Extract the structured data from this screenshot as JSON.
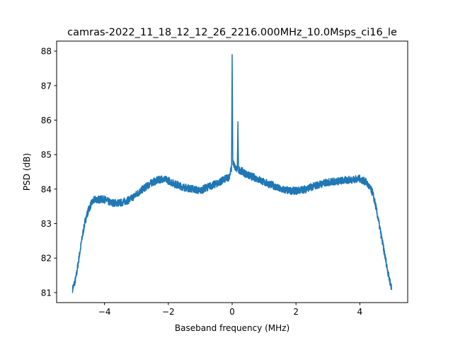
{
  "chart_data": {
    "type": "line",
    "title": "camras-2022_11_18_12_12_26_2216.000MHz_10.0Msps_ci16_le",
    "xlabel": "Baseband frequency (MHz)",
    "ylabel": "PSD (dB)",
    "xlim": [
      -5.5,
      5.5
    ],
    "ylim": [
      80.71,
      88.29
    ],
    "xticks": [
      -4,
      -2,
      0,
      2,
      4
    ],
    "xtick_labels": [
      "−4",
      "−2",
      "0",
      "2",
      "4"
    ],
    "yticks": [
      81,
      82,
      83,
      84,
      85,
      86,
      87,
      88
    ],
    "ytick_labels": [
      "81",
      "82",
      "83",
      "84",
      "85",
      "86",
      "87",
      "88"
    ],
    "grid": false,
    "line_color": "#1f77b4",
    "series": [
      {
        "x": [
          -5.0,
          -4.9,
          -4.8,
          -4.7,
          -4.6,
          -4.5,
          -4.4,
          -4.3,
          -4.0,
          -3.8,
          -3.5,
          -3.2,
          -3.0,
          -2.8,
          -2.5,
          -2.2,
          -2.0,
          -1.8,
          -1.5,
          -1.2,
          -1.0,
          -0.8,
          -0.5,
          -0.3,
          -0.1,
          -0.02,
          0.0,
          0.02,
          0.1,
          0.16,
          0.18,
          0.2,
          0.25,
          0.5,
          0.8,
          1.0,
          1.3,
          1.5,
          1.8,
          2.0,
          2.3,
          2.6,
          3.0,
          3.5,
          4.0,
          4.2,
          4.4,
          4.5,
          4.6,
          4.7,
          4.8,
          4.9,
          5.0
        ],
        "y": [
          81.1,
          81.4,
          82.0,
          82.6,
          83.1,
          83.4,
          83.6,
          83.7,
          83.7,
          83.6,
          83.6,
          83.7,
          83.85,
          84.0,
          84.2,
          84.3,
          84.25,
          84.15,
          84.05,
          84.0,
          83.95,
          84.05,
          84.15,
          84.25,
          84.35,
          84.6,
          87.9,
          84.8,
          84.6,
          84.55,
          85.95,
          84.55,
          84.55,
          84.4,
          84.3,
          84.2,
          84.1,
          84.0,
          83.95,
          83.95,
          84.0,
          84.1,
          84.2,
          84.25,
          84.3,
          84.2,
          83.9,
          83.5,
          83.0,
          82.5,
          82.0,
          81.5,
          81.1
        ]
      }
    ]
  }
}
